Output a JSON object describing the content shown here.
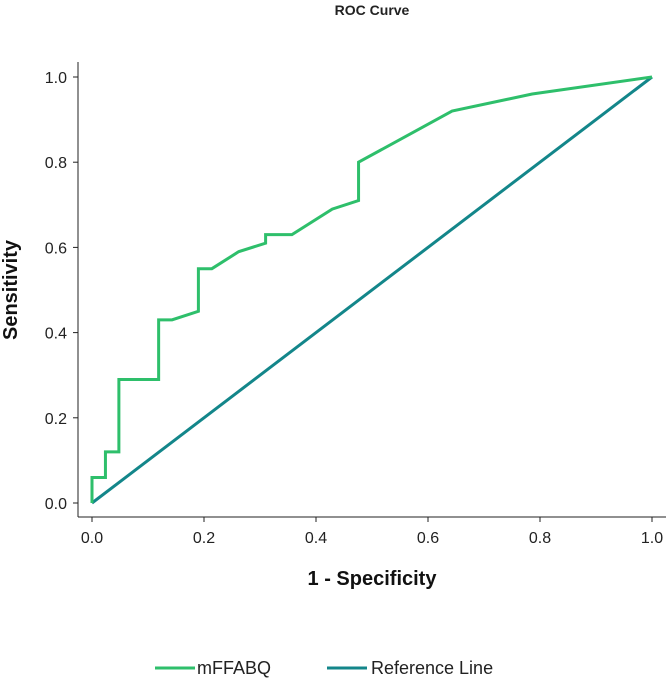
{
  "chart_data": {
    "type": "line",
    "title": "ROC Curve",
    "xlabel": "1 - Specificity",
    "ylabel": "Sensitivity",
    "xlim": [
      0.0,
      1.0
    ],
    "ylim": [
      0.0,
      1.0
    ],
    "x_ticks": [
      "0.0",
      "0.2",
      "0.4",
      "0.6",
      "0.8",
      "1.0"
    ],
    "y_ticks": [
      "0.0",
      "0.2",
      "0.4",
      "0.6",
      "0.8",
      "1.0"
    ],
    "grid": false,
    "legend_position": "bottom",
    "series": [
      {
        "name": "mFFABQ",
        "color": "#2ebf6b",
        "points": [
          [
            0.0,
            0.0
          ],
          [
            0.0,
            0.06
          ],
          [
            0.024,
            0.06
          ],
          [
            0.024,
            0.12
          ],
          [
            0.048,
            0.12
          ],
          [
            0.048,
            0.29
          ],
          [
            0.119,
            0.29
          ],
          [
            0.119,
            0.43
          ],
          [
            0.143,
            0.43
          ],
          [
            0.19,
            0.45
          ],
          [
            0.19,
            0.55
          ],
          [
            0.214,
            0.55
          ],
          [
            0.262,
            0.59
          ],
          [
            0.31,
            0.61
          ],
          [
            0.31,
            0.63
          ],
          [
            0.357,
            0.63
          ],
          [
            0.429,
            0.69
          ],
          [
            0.476,
            0.71
          ],
          [
            0.476,
            0.8
          ],
          [
            0.643,
            0.92
          ],
          [
            0.786,
            0.96
          ],
          [
            1.0,
            1.0
          ]
        ]
      },
      {
        "name": "Reference Line",
        "color": "#13868a",
        "points": [
          [
            0.0,
            0.0
          ],
          [
            1.0,
            1.0
          ]
        ]
      }
    ]
  }
}
